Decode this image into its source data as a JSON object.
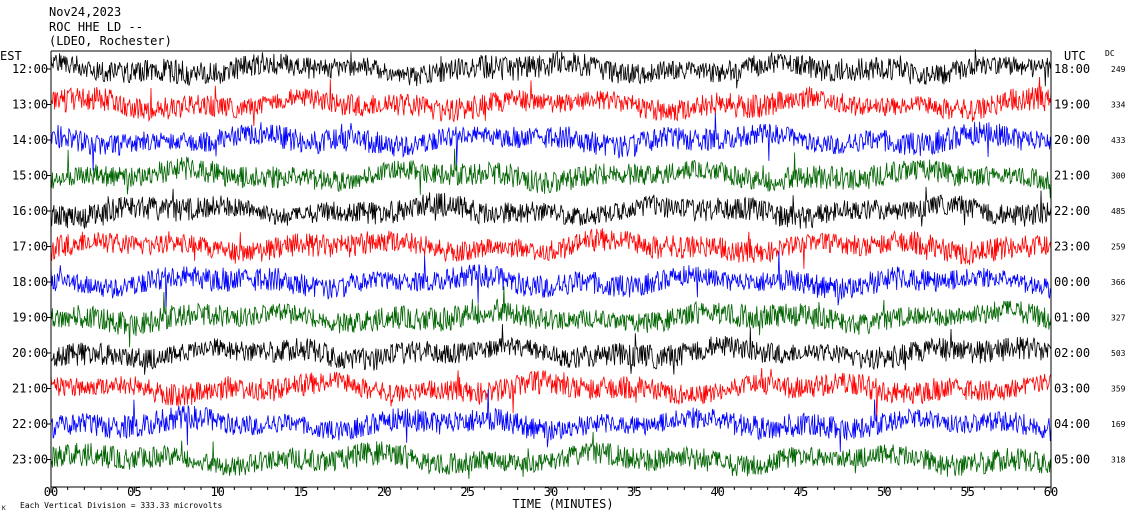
{
  "header": {
    "date": "Nov24,2023",
    "station": "ROC HHE LD --",
    "location": "(LDEO, Rochester)"
  },
  "labels": {
    "left_tz": "EST",
    "right_tz": "UTC",
    "dc": "DC",
    "x_axis": "TIME (MINUTES)",
    "scale_note": "Each Vertical Division =  333.33 microvolts",
    "corner_mark": "K"
  },
  "chart_data": {
    "type": "line",
    "title": "Nov24,2023 ROC HHE LD -- (LDEO, Rochester)",
    "xlabel": "TIME (MINUTES)",
    "xlim": [
      0,
      60
    ],
    "x_ticks": [
      "00",
      "05",
      "10",
      "15",
      "20",
      "25",
      "30",
      "35",
      "40",
      "45",
      "50",
      "55",
      "60"
    ],
    "scale": "Each Vertical Division =  333.33 microvolts",
    "grid": false,
    "series": [
      {
        "est": "12:00",
        "utc": "18:00",
        "dc": "249",
        "color": "#000000"
      },
      {
        "est": "13:00",
        "utc": "19:00",
        "dc": "334",
        "color": "#ff0000"
      },
      {
        "est": "14:00",
        "utc": "20:00",
        "dc": "433",
        "color": "#0000ff"
      },
      {
        "est": "15:00",
        "utc": "21:00",
        "dc": "300",
        "color": "#006400"
      },
      {
        "est": "16:00",
        "utc": "22:00",
        "dc": "485",
        "color": "#000000"
      },
      {
        "est": "17:00",
        "utc": "23:00",
        "dc": "259",
        "color": "#ff0000"
      },
      {
        "est": "18:00",
        "utc": "00:00",
        "dc": "366",
        "color": "#0000ff"
      },
      {
        "est": "19:00",
        "utc": "01:00",
        "dc": "327",
        "color": "#006400"
      },
      {
        "est": "20:00",
        "utc": "02:00",
        "dc": "503",
        "color": "#000000"
      },
      {
        "est": "21:00",
        "utc": "03:00",
        "dc": "359",
        "color": "#ff0000"
      },
      {
        "est": "22:00",
        "utc": "04:00",
        "dc": "169",
        "color": "#0000ff"
      },
      {
        "est": "23:00",
        "utc": "05:00",
        "dc": "318",
        "color": "#006400"
      }
    ]
  }
}
